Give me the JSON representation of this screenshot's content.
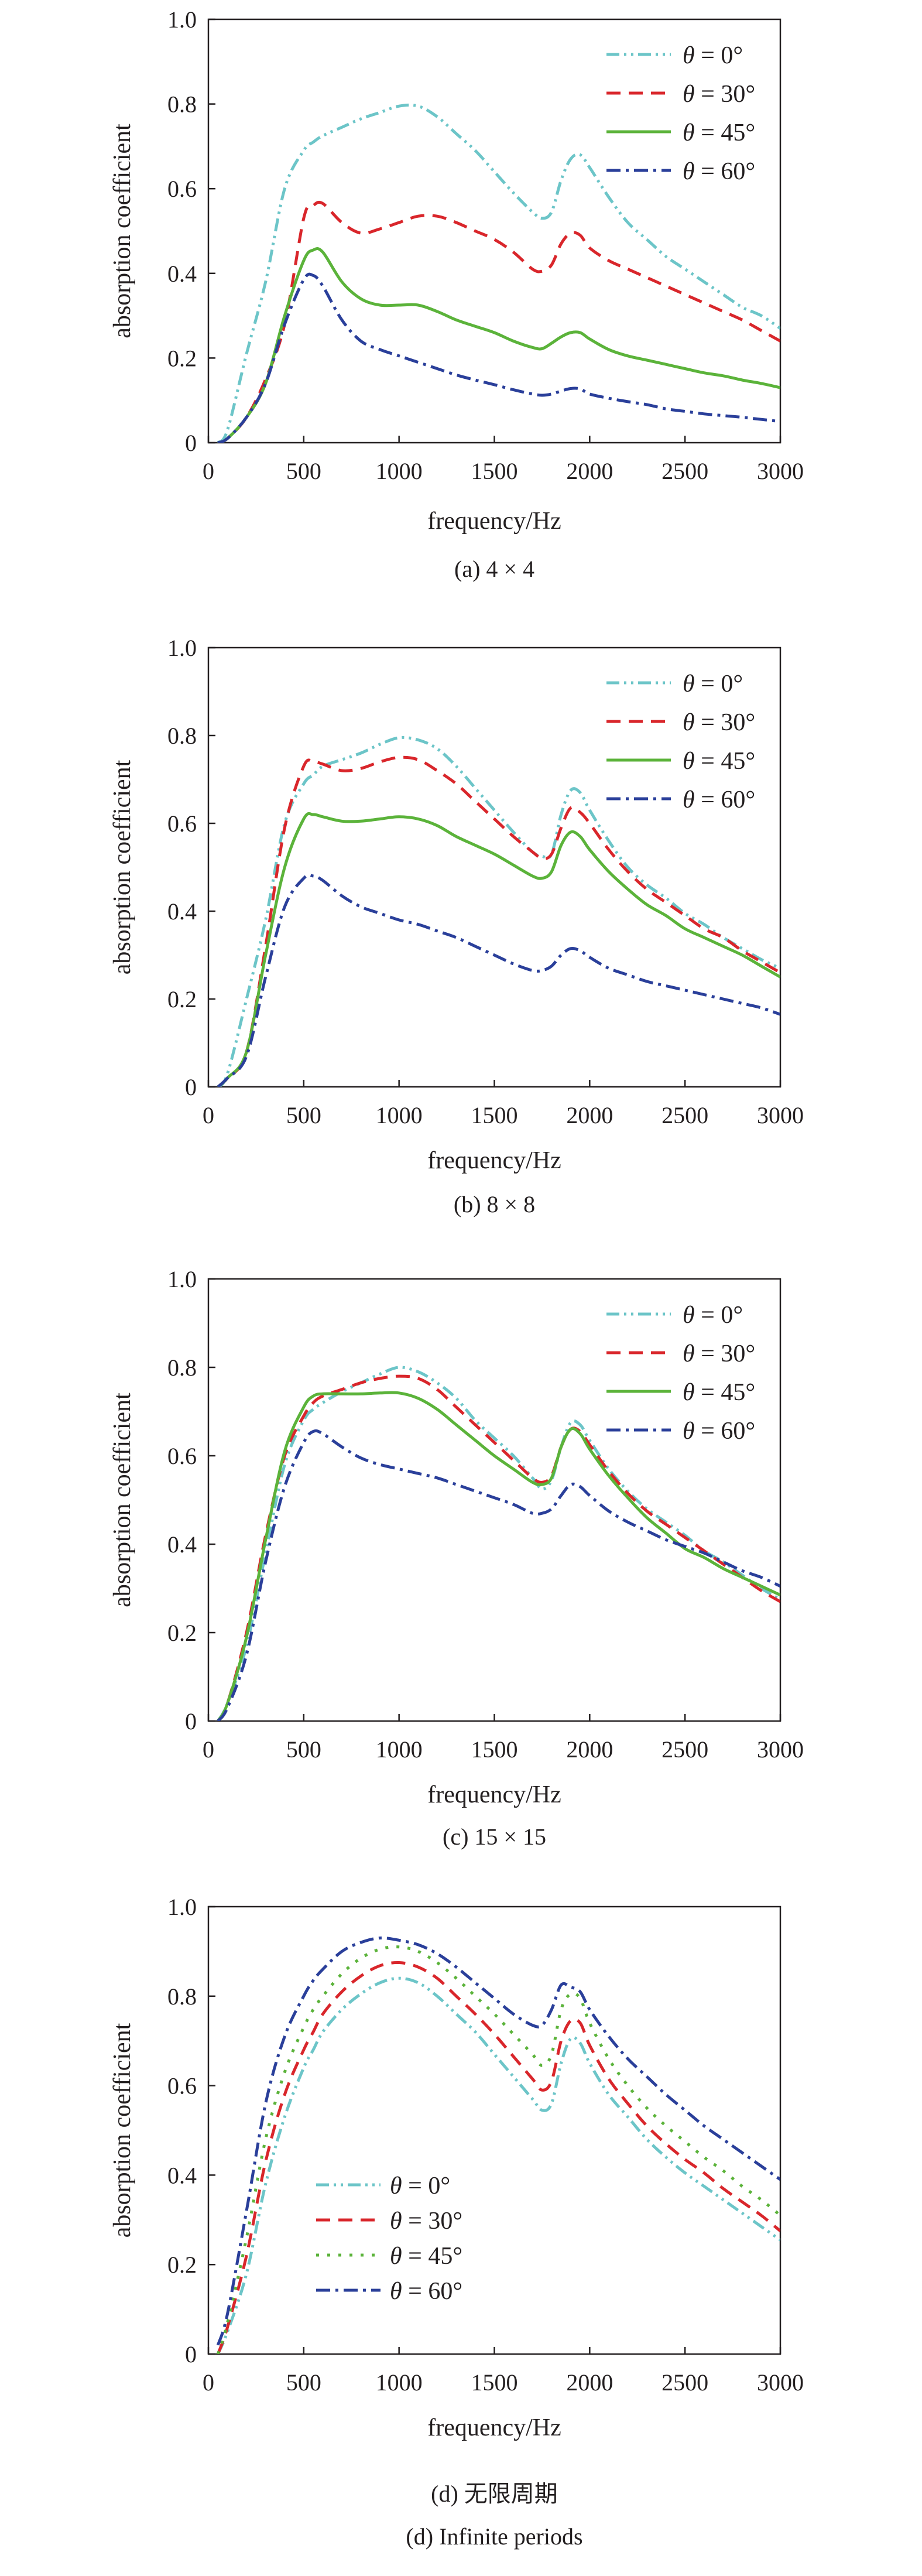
{
  "colors": {
    "theta0": "#6cc5c8",
    "theta30": "#d9262b",
    "theta45": "#5bb33a",
    "theta60": "#2a3f9a",
    "axis": "#231f20"
  },
  "chart_data": [
    {
      "type": "line",
      "caption": "(a) 4 × 4",
      "xlabel": "frequency/Hz",
      "ylabel": "absorption coefficient",
      "xlim": [
        0,
        3000
      ],
      "ylim": [
        0,
        1.0
      ],
      "xticks": [
        "0",
        "500",
        "1000",
        "1500",
        "2000",
        "2500",
        "3000"
      ],
      "yticks": [
        "0",
        "0.2",
        "0.4",
        "0.6",
        "0.8",
        "1.0"
      ],
      "grid": false,
      "legend": "top-right",
      "x": [
        50,
        100,
        200,
        300,
        400,
        500,
        550,
        600,
        700,
        800,
        900,
        1000,
        1100,
        1200,
        1300,
        1400,
        1500,
        1600,
        1700,
        1750,
        1800,
        1850,
        1900,
        1950,
        2000,
        2100,
        2200,
        2300,
        2400,
        2500,
        2600,
        2700,
        2800,
        2900,
        3000
      ],
      "series": [
        {
          "name": "θ = 0°",
          "style": "dash-dot-dot",
          "values": [
            0,
            0.03,
            0.21,
            0.38,
            0.6,
            0.69,
            0.71,
            0.725,
            0.745,
            0.765,
            0.78,
            0.795,
            0.795,
            0.77,
            0.73,
            0.69,
            0.64,
            0.59,
            0.545,
            0.53,
            0.545,
            0.62,
            0.67,
            0.68,
            0.65,
            0.58,
            0.52,
            0.48,
            0.44,
            0.41,
            0.38,
            0.35,
            0.32,
            0.3,
            0.27
          ]
        },
        {
          "name": "θ = 30°",
          "style": "dashed",
          "values": [
            0,
            0.01,
            0.06,
            0.15,
            0.28,
            0.53,
            0.56,
            0.565,
            0.52,
            0.495,
            0.505,
            0.52,
            0.535,
            0.535,
            0.52,
            0.5,
            0.48,
            0.45,
            0.41,
            0.405,
            0.42,
            0.47,
            0.495,
            0.49,
            0.46,
            0.43,
            0.41,
            0.39,
            0.37,
            0.35,
            0.33,
            0.31,
            0.29,
            0.265,
            0.24
          ]
        },
        {
          "name": "θ = 45°",
          "style": "solid",
          "values": [
            0,
            0.01,
            0.06,
            0.14,
            0.3,
            0.43,
            0.455,
            0.45,
            0.38,
            0.34,
            0.325,
            0.325,
            0.325,
            0.31,
            0.29,
            0.275,
            0.26,
            0.24,
            0.225,
            0.222,
            0.235,
            0.25,
            0.26,
            0.26,
            0.245,
            0.22,
            0.205,
            0.195,
            0.185,
            0.175,
            0.165,
            0.158,
            0.148,
            0.14,
            0.13
          ]
        },
        {
          "name": "θ = 60°",
          "style": "dash-dot",
          "values": [
            0,
            0.01,
            0.06,
            0.14,
            0.28,
            0.385,
            0.395,
            0.37,
            0.29,
            0.24,
            0.22,
            0.205,
            0.19,
            0.175,
            0.16,
            0.148,
            0.137,
            0.125,
            0.115,
            0.112,
            0.115,
            0.122,
            0.128,
            0.127,
            0.115,
            0.105,
            0.097,
            0.09,
            0.08,
            0.074,
            0.068,
            0.064,
            0.06,
            0.055,
            0.05
          ]
        }
      ]
    },
    {
      "type": "line",
      "caption": "(b) 8 × 8",
      "xlabel": "frequency/Hz",
      "ylabel": "absorption coefficient",
      "xlim": [
        0,
        3000
      ],
      "ylim": [
        0,
        1.0
      ],
      "xticks": [
        "0",
        "500",
        "1000",
        "1500",
        "2000",
        "2500",
        "3000"
      ],
      "yticks": [
        "0",
        "0.2",
        "0.4",
        "0.6",
        "0.8",
        "1.0"
      ],
      "grid": false,
      "legend": "top-right",
      "x": [
        50,
        100,
        200,
        300,
        400,
        500,
        550,
        600,
        700,
        800,
        900,
        1000,
        1100,
        1200,
        1300,
        1400,
        1500,
        1600,
        1700,
        1750,
        1800,
        1850,
        1900,
        1950,
        2000,
        2100,
        2200,
        2300,
        2400,
        2500,
        2600,
        2700,
        2800,
        2900,
        3000
      ],
      "series": [
        {
          "name": "θ = 0°",
          "style": "dash-dot-dot",
          "values": [
            0,
            0.03,
            0.2,
            0.38,
            0.6,
            0.69,
            0.71,
            0.73,
            0.745,
            0.76,
            0.78,
            0.795,
            0.79,
            0.77,
            0.73,
            0.68,
            0.63,
            0.58,
            0.535,
            0.525,
            0.53,
            0.62,
            0.675,
            0.67,
            0.63,
            0.56,
            0.5,
            0.46,
            0.43,
            0.395,
            0.37,
            0.34,
            0.315,
            0.29,
            0.27
          ]
        },
        {
          "name": "θ = 30°",
          "style": "dashed",
          "values": [
            0,
            0.02,
            0.08,
            0.32,
            0.59,
            0.73,
            0.74,
            0.735,
            0.72,
            0.725,
            0.74,
            0.75,
            0.745,
            0.72,
            0.69,
            0.65,
            0.61,
            0.57,
            0.535,
            0.52,
            0.53,
            0.59,
            0.635,
            0.625,
            0.6,
            0.54,
            0.49,
            0.45,
            0.42,
            0.39,
            0.36,
            0.34,
            0.31,
            0.285,
            0.26
          ]
        },
        {
          "name": "θ = 45°",
          "style": "solid",
          "values": [
            0,
            0.02,
            0.08,
            0.3,
            0.5,
            0.61,
            0.62,
            0.615,
            0.605,
            0.605,
            0.61,
            0.615,
            0.61,
            0.595,
            0.57,
            0.55,
            0.53,
            0.505,
            0.48,
            0.475,
            0.49,
            0.55,
            0.58,
            0.57,
            0.54,
            0.49,
            0.45,
            0.415,
            0.39,
            0.36,
            0.34,
            0.32,
            0.3,
            0.275,
            0.25
          ]
        },
        {
          "name": "θ = 60°",
          "style": "dash-dot",
          "values": [
            0,
            0.02,
            0.07,
            0.25,
            0.41,
            0.475,
            0.48,
            0.47,
            0.435,
            0.41,
            0.395,
            0.38,
            0.37,
            0.355,
            0.34,
            0.32,
            0.3,
            0.28,
            0.265,
            0.265,
            0.275,
            0.3,
            0.315,
            0.31,
            0.295,
            0.27,
            0.255,
            0.24,
            0.23,
            0.22,
            0.21,
            0.2,
            0.19,
            0.18,
            0.165
          ]
        }
      ]
    },
    {
      "type": "line",
      "caption": "(c) 15 × 15",
      "xlabel": "frequency/Hz",
      "ylabel": "absorption coefficient",
      "xlim": [
        0,
        3000
      ],
      "ylim": [
        0,
        1.0
      ],
      "xticks": [
        "0",
        "500",
        "1000",
        "1500",
        "2000",
        "2500",
        "3000"
      ],
      "yticks": [
        "0",
        "0.2",
        "0.4",
        "0.6",
        "0.8",
        "1.0"
      ],
      "grid": false,
      "legend": "top-right",
      "x": [
        50,
        100,
        200,
        300,
        400,
        500,
        550,
        600,
        700,
        800,
        900,
        1000,
        1100,
        1200,
        1300,
        1400,
        1500,
        1600,
        1700,
        1750,
        1800,
        1850,
        1900,
        1950,
        2000,
        2100,
        2200,
        2300,
        2400,
        2500,
        2600,
        2700,
        2800,
        2900,
        3000
      ],
      "series": [
        {
          "name": "θ = 0°",
          "style": "dash-dot-dot",
          "values": [
            0,
            0.04,
            0.17,
            0.38,
            0.58,
            0.68,
            0.705,
            0.72,
            0.745,
            0.765,
            0.785,
            0.8,
            0.79,
            0.765,
            0.73,
            0.68,
            0.64,
            0.6,
            0.55,
            0.525,
            0.545,
            0.62,
            0.675,
            0.67,
            0.635,
            0.57,
            0.52,
            0.48,
            0.45,
            0.42,
            0.385,
            0.36,
            0.33,
            0.3,
            0.275
          ]
        },
        {
          "name": "θ = 30°",
          "style": "dashed",
          "values": [
            0,
            0.04,
            0.2,
            0.42,
            0.6,
            0.69,
            0.72,
            0.735,
            0.75,
            0.765,
            0.775,
            0.78,
            0.775,
            0.75,
            0.71,
            0.67,
            0.63,
            0.59,
            0.55,
            0.54,
            0.555,
            0.62,
            0.66,
            0.655,
            0.625,
            0.565,
            0.515,
            0.475,
            0.445,
            0.415,
            0.385,
            0.355,
            0.325,
            0.295,
            0.27
          ]
        },
        {
          "name": "θ = 45°",
          "style": "solid",
          "values": [
            0,
            0.04,
            0.19,
            0.41,
            0.61,
            0.71,
            0.735,
            0.74,
            0.74,
            0.74,
            0.742,
            0.742,
            0.73,
            0.705,
            0.67,
            0.635,
            0.6,
            0.57,
            0.54,
            0.535,
            0.55,
            0.62,
            0.66,
            0.65,
            0.615,
            0.555,
            0.505,
            0.46,
            0.425,
            0.39,
            0.37,
            0.345,
            0.325,
            0.305,
            0.285
          ]
        },
        {
          "name": "θ = 60°",
          "style": "dash-dot",
          "values": [
            0,
            0.03,
            0.15,
            0.36,
            0.53,
            0.63,
            0.655,
            0.65,
            0.62,
            0.595,
            0.58,
            0.57,
            0.56,
            0.55,
            0.535,
            0.52,
            0.505,
            0.49,
            0.47,
            0.47,
            0.48,
            0.51,
            0.535,
            0.53,
            0.51,
            0.475,
            0.45,
            0.43,
            0.41,
            0.395,
            0.38,
            0.36,
            0.34,
            0.325,
            0.305
          ]
        }
      ]
    },
    {
      "type": "line",
      "caption": "(d) 无限周期",
      "caption2": "(d) Infinite periods",
      "xlabel": "frequency/Hz",
      "ylabel": "absorption coefficient",
      "xlim": [
        0,
        3000
      ],
      "ylim": [
        0,
        1.0
      ],
      "xticks": [
        "0",
        "500",
        "1000",
        "1500",
        "2000",
        "2500",
        "3000"
      ],
      "yticks": [
        "0",
        "0.2",
        "0.4",
        "0.6",
        "0.8",
        "1.0"
      ],
      "grid": false,
      "legend": "center-left",
      "x": [
        50,
        100,
        200,
        300,
        400,
        500,
        550,
        600,
        700,
        800,
        900,
        1000,
        1100,
        1200,
        1300,
        1400,
        1500,
        1600,
        1700,
        1750,
        1800,
        1850,
        1900,
        1950,
        2000,
        2100,
        2200,
        2300,
        2400,
        2500,
        2600,
        2700,
        2800,
        2900,
        3000
      ],
      "series": [
        {
          "name": "θ = 0°",
          "style": "dash-dot-dot",
          "values": [
            0,
            0.05,
            0.18,
            0.38,
            0.53,
            0.64,
            0.68,
            0.72,
            0.77,
            0.805,
            0.83,
            0.84,
            0.83,
            0.8,
            0.76,
            0.72,
            0.67,
            0.62,
            0.57,
            0.545,
            0.56,
            0.65,
            0.705,
            0.695,
            0.65,
            0.58,
            0.53,
            0.48,
            0.44,
            0.405,
            0.375,
            0.345,
            0.315,
            0.285,
            0.255
          ]
        },
        {
          "name": "θ = 30°",
          "style": "dashed",
          "values": [
            0,
            0.06,
            0.22,
            0.43,
            0.58,
            0.68,
            0.72,
            0.76,
            0.81,
            0.845,
            0.868,
            0.875,
            0.865,
            0.84,
            0.8,
            0.76,
            0.715,
            0.665,
            0.615,
            0.59,
            0.61,
            0.7,
            0.745,
            0.74,
            0.69,
            0.615,
            0.56,
            0.51,
            0.47,
            0.435,
            0.405,
            0.37,
            0.34,
            0.31,
            0.275
          ]
        },
        {
          "name": "θ = 45°",
          "style": "dotted",
          "values": [
            0,
            0.07,
            0.26,
            0.48,
            0.63,
            0.73,
            0.77,
            0.8,
            0.85,
            0.885,
            0.905,
            0.91,
            0.9,
            0.875,
            0.84,
            0.8,
            0.76,
            0.715,
            0.67,
            0.645,
            0.67,
            0.77,
            0.805,
            0.795,
            0.74,
            0.66,
            0.6,
            0.55,
            0.51,
            0.475,
            0.44,
            0.41,
            0.375,
            0.345,
            0.31
          ]
        },
        {
          "name": "θ = 60°",
          "style": "dash-dot",
          "values": [
            0.02,
            0.09,
            0.32,
            0.56,
            0.71,
            0.8,
            0.835,
            0.86,
            0.9,
            0.92,
            0.93,
            0.925,
            0.915,
            0.895,
            0.865,
            0.83,
            0.795,
            0.76,
            0.735,
            0.735,
            0.77,
            0.825,
            0.82,
            0.81,
            0.77,
            0.71,
            0.66,
            0.62,
            0.58,
            0.545,
            0.51,
            0.48,
            0.45,
            0.42,
            0.39
          ]
        }
      ]
    }
  ]
}
